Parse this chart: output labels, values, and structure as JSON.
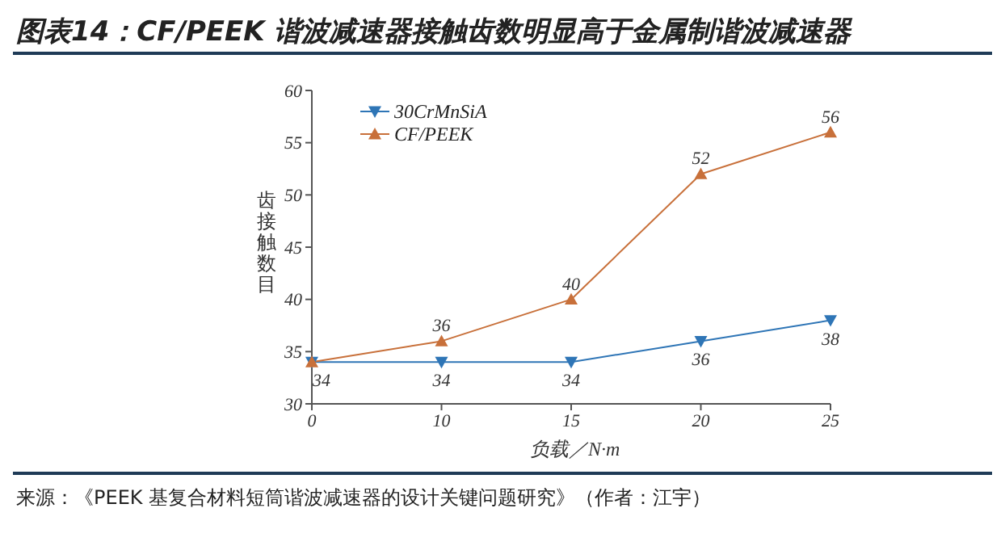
{
  "chart_data": {
    "type": "line",
    "title": "图表14：CF/PEEK 谐波减速器接触齿数明显高于金属制谐波减速器",
    "xlabel": "负载／N·m",
    "ylabel": "齿接触数目",
    "categories": [
      "0",
      "10",
      "15",
      "20",
      "25"
    ],
    "series": [
      {
        "name": "30CrMnSiA",
        "color": "#2e75b6",
        "marker": "triangle-down",
        "values": [
          34,
          34,
          34,
          36,
          38
        ],
        "value_labels": [
          "34",
          "34",
          "34",
          "36",
          "38"
        ]
      },
      {
        "name": "CF/PEEK",
        "color": "#c8703a",
        "marker": "triangle",
        "values": [
          34,
          36,
          40,
          52,
          56
        ],
        "value_labels": [
          null,
          "36",
          "40",
          "52",
          "56"
        ]
      }
    ],
    "ylim": [
      30,
      60
    ],
    "yticks": [
      30,
      35,
      40,
      45,
      50,
      55,
      60
    ],
    "grid": false,
    "legend": "top left",
    "line_style": "solid",
    "annotations": [
      "来源：《PEEK 基复合材料短筒谐波减速器的设计关键问题研究》（作者：江宇）"
    ]
  }
}
